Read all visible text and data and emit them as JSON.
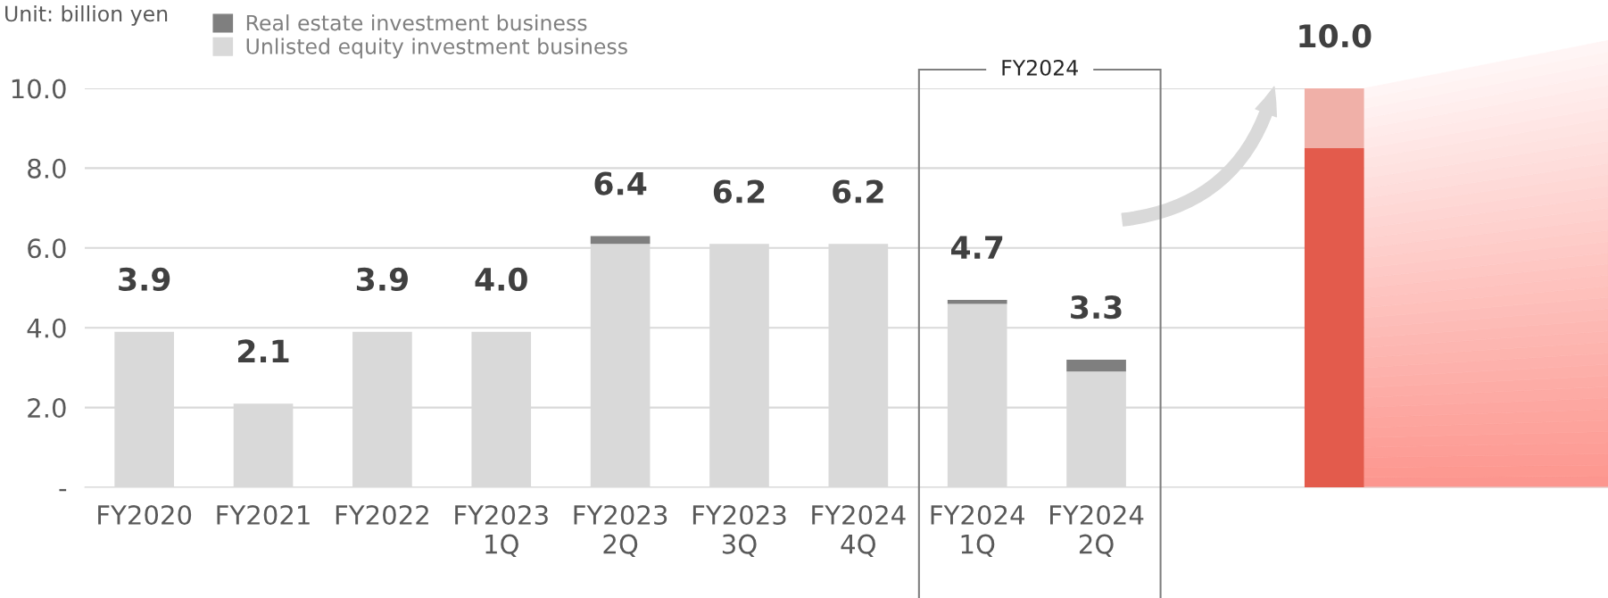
{
  "chart_data": {
    "type": "bar",
    "stacked": true,
    "ylabel": "Unit: billion yen",
    "categories": [
      "FY2020",
      "FY2021",
      "FY2022",
      "FY2023\n1Q",
      "FY2023\n2Q",
      "FY2023\n3Q",
      "FY2024\n4Q",
      "FY2024\n1Q",
      "FY2024\n2Q",
      null,
      null
    ],
    "series": [
      {
        "name": "Unlisted equity investment business",
        "color": "#d9d9d9",
        "colors": [
          "#d9d9d9",
          "#d9d9d9",
          "#d9d9d9",
          "#d9d9d9",
          "#d9d9d9",
          "#d9d9d9",
          "#d9d9d9",
          "#d9d9d9",
          "#d9d9d9",
          "#d9d9d9",
          "#e35b4c"
        ],
        "values": [
          3.9,
          2.1,
          3.9,
          3.9,
          6.1,
          6.1,
          6.1,
          4.6,
          2.9,
          null,
          8.5
        ]
      },
      {
        "name": "Real estate investment business",
        "color": "#7f7f7f",
        "colors": [
          "#7f7f7f",
          "#7f7f7f",
          "#7f7f7f",
          "#7f7f7f",
          "#7f7f7f",
          "#7f7f7f",
          "#7f7f7f",
          "#7f7f7f",
          "#7f7f7f",
          "#7f7f7f",
          "#f0b0a8"
        ],
        "values": [
          null,
          null,
          null,
          null,
          0.2,
          null,
          null,
          0.1,
          0.3,
          null,
          1.5
        ]
      }
    ],
    "totals": [
      "3.9",
      "2.1",
      "3.9",
      "4.0",
      "6.4",
      "6.2",
      "6.2",
      "4.7",
      "3.3",
      null,
      "10.0"
    ],
    "ylim": [
      0,
      10
    ],
    "yticks": [
      {
        "value": 0,
        "label": "-"
      },
      {
        "value": 2,
        "label": "2.0"
      },
      {
        "value": 4,
        "label": "4.0"
      },
      {
        "value": 6,
        "label": "6.0"
      },
      {
        "value": 8,
        "label": "8.0"
      },
      {
        "value": 10,
        "label": "10.0"
      }
    ],
    "annotations": [
      "FY2024"
    ],
    "grid": "y",
    "legend": "top left"
  }
}
